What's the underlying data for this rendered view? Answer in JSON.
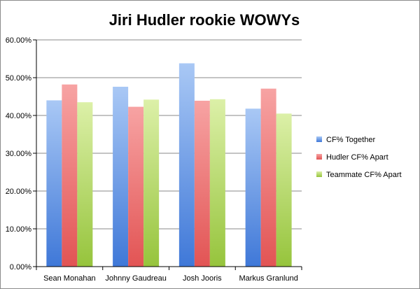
{
  "chart_data": {
    "type": "bar",
    "title": "Jiri Hudler rookie WOWYs",
    "xlabel": "",
    "ylabel": "",
    "categories": [
      "Sean Monahan",
      "Johnny Gaudreau",
      "Josh Jooris",
      "Markus Granlund"
    ],
    "series": [
      {
        "name": "CF% Together",
        "values": [
          44.0,
          47.6,
          53.8,
          41.8
        ],
        "color": "#6f9fe6"
      },
      {
        "name": "Hudler CF% Apart",
        "values": [
          48.2,
          42.3,
          43.9,
          47.1
        ],
        "color": "#ee7070"
      },
      {
        "name": "Teammate CF% Apart",
        "values": [
          43.5,
          44.2,
          44.3,
          40.5
        ],
        "color": "#b8d96a"
      }
    ],
    "ylim": [
      0,
      60
    ],
    "yticks": [
      "0.00%",
      "10.00%",
      "20.00%",
      "30.00%",
      "40.00%",
      "50.00%",
      "60.00%"
    ],
    "grid": true,
    "legend_position": "right"
  }
}
